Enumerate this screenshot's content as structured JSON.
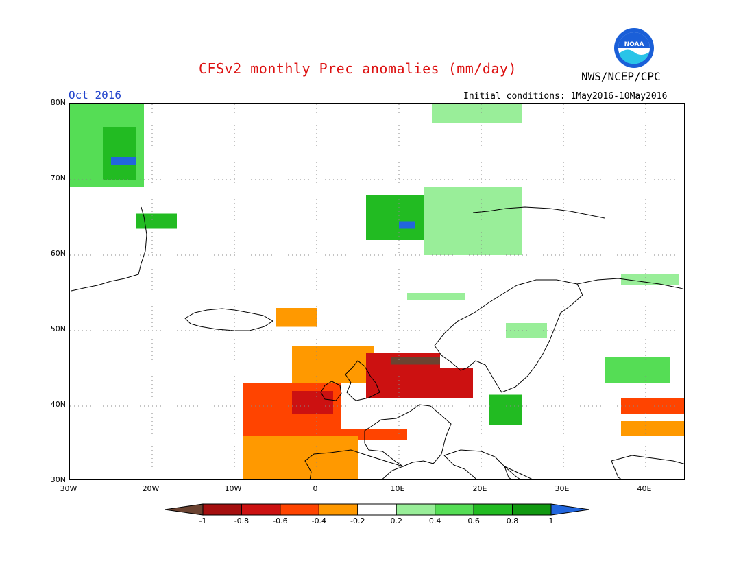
{
  "header": {
    "title": "CFSv2 monthly Prec anomalies (mm/day)",
    "agency": "NWS/NCEP/CPC",
    "month": "Oct 2016",
    "initial_conditions": "Initial conditions: 1May2016-10May2016",
    "logo_text": "NOAA"
  },
  "axes": {
    "lat_labels": [
      "80N",
      "70N",
      "60N",
      "50N",
      "40N",
      "30N"
    ],
    "lon_labels": [
      "30W",
      "20W",
      "10W",
      "0",
      "10E",
      "20E",
      "30E",
      "40E"
    ]
  },
  "colorbar": {
    "labels": [
      "-1",
      "-0.8",
      "-0.6",
      "-0.4",
      "-0.2",
      "0.2",
      "0.4",
      "0.6",
      "0.8",
      "1"
    ],
    "colors": [
      "#6b4331",
      "#a50f0f",
      "#cc1111",
      "#ff4400",
      "#ff9900",
      "#ffffff",
      "#99ee99",
      "#55dd55",
      "#22bb22",
      "#119911",
      "#2266dd"
    ]
  },
  "map": {
    "extent": {
      "lon": [
        -30,
        45
      ],
      "lat": [
        30,
        80
      ]
    },
    "anomaly_regions": [
      {
        "name": "greenland-wet",
        "level": 0.4,
        "lon": [
          -30,
          -21
        ],
        "lat": [
          69,
          80
        ]
      },
      {
        "name": "greenland-core",
        "level": 0.6,
        "lon": [
          -26,
          -22
        ],
        "lat": [
          70,
          77
        ]
      },
      {
        "name": "greenland-peak",
        "level": 1,
        "lon": [
          -25,
          -22
        ],
        "lat": [
          72,
          73
        ]
      },
      {
        "name": "iceland",
        "level": 0.6,
        "lon": [
          -22,
          -17
        ],
        "lat": [
          63.5,
          65.5
        ]
      },
      {
        "name": "norway-coast",
        "level": 0.6,
        "lon": [
          6,
          16
        ],
        "lat": [
          62,
          68
        ]
      },
      {
        "name": "norway-peak",
        "level": 1,
        "lon": [
          10,
          12
        ],
        "lat": [
          63.5,
          64.5
        ]
      },
      {
        "name": "scandinavia",
        "level": 0.2,
        "lon": [
          13,
          25
        ],
        "lat": [
          60,
          69
        ]
      },
      {
        "name": "svalbard",
        "level": 0.2,
        "lon": [
          14,
          25
        ],
        "lat": [
          77.5,
          80
        ]
      },
      {
        "name": "south-baltic",
        "level": 0.2,
        "lon": [
          11,
          18
        ],
        "lat": [
          54,
          55
        ]
      },
      {
        "name": "poland-east",
        "level": 0.2,
        "lon": [
          23,
          28
        ],
        "lat": [
          49,
          51
        ]
      },
      {
        "name": "greece-balkans",
        "level": 0.6,
        "lon": [
          21,
          25
        ],
        "lat": [
          37.5,
          41.5
        ]
      },
      {
        "name": "black-sea-north",
        "level": 0.4,
        "lon": [
          35,
          43
        ],
        "lat": [
          43,
          46.5
        ]
      },
      {
        "name": "russia-west",
        "level": 0.2,
        "lon": [
          37,
          44
        ],
        "lat": [
          56,
          57.5
        ]
      },
      {
        "name": "spain",
        "level": -0.6,
        "lon": [
          -9,
          3
        ],
        "lat": [
          36,
          43
        ]
      },
      {
        "name": "spain-core",
        "level": -0.8,
        "lon": [
          -3,
          2
        ],
        "lat": [
          39,
          42
        ]
      },
      {
        "name": "france-south",
        "level": -0.4,
        "lon": [
          -3,
          7
        ],
        "lat": [
          43,
          48
        ]
      },
      {
        "name": "italy",
        "level": -0.8,
        "lon": [
          6,
          15
        ],
        "lat": [
          41,
          47
        ]
      },
      {
        "name": "alps-peak",
        "level": -1,
        "lon": [
          9,
          15
        ],
        "lat": [
          45.5,
          46.5
        ]
      },
      {
        "name": "adriatic",
        "level": -0.8,
        "lon": [
          14,
          19
        ],
        "lat": [
          41,
          45
        ]
      },
      {
        "name": "north-africa",
        "level": -0.6,
        "lon": [
          -2,
          11
        ],
        "lat": [
          35.5,
          37
        ]
      },
      {
        "name": "sahara-north",
        "level": -0.4,
        "lon": [
          -9,
          5
        ],
        "lat": [
          30,
          36
        ]
      },
      {
        "name": "uk-south",
        "level": -0.4,
        "lon": [
          -5,
          0
        ],
        "lat": [
          50.5,
          53
        ]
      },
      {
        "name": "turkey-east",
        "level": -0.6,
        "lon": [
          37,
          45
        ],
        "lat": [
          39,
          41
        ]
      },
      {
        "name": "middle-east",
        "level": -0.4,
        "lon": [
          37,
          45
        ],
        "lat": [
          36,
          38
        ]
      }
    ]
  }
}
